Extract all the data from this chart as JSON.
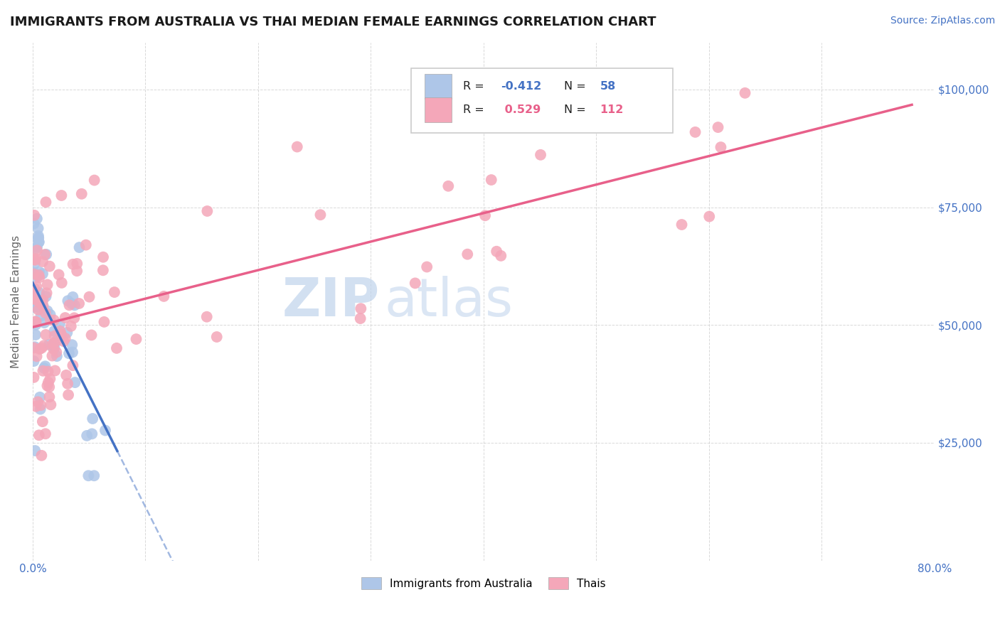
{
  "title": "IMMIGRANTS FROM AUSTRALIA VS THAI MEDIAN FEMALE EARNINGS CORRELATION CHART",
  "source": "Source: ZipAtlas.com",
  "ylabel": "Median Female Earnings",
  "legend_label1": "Immigrants from Australia",
  "legend_label2": "Thais",
  "R1": "-0.412",
  "N1": "58",
  "R2": "0.529",
  "N2": "112",
  "watermark_zip": "ZIP",
  "watermark_atlas": "atlas",
  "xlim": [
    0.0,
    0.8
  ],
  "ylim": [
    0,
    110000
  ],
  "ytick_labels": [
    "$25,000",
    "$50,000",
    "$75,000",
    "$100,000"
  ],
  "ytick_values": [
    25000,
    50000,
    75000,
    100000
  ],
  "color_australia": "#aec6e8",
  "color_thai": "#f4a7b9",
  "line_color_australia": "#4472c4",
  "line_color_thai": "#e8608a",
  "background_color": "#ffffff",
  "title_color": "#1a1a1a",
  "axis_label_color": "#4472c4",
  "grid_color": "#d0d0d0",
  "legend_R_color": "#222222",
  "watermark_zip_color": "#c5d8ef",
  "watermark_atlas_color": "#c5d8ef"
}
